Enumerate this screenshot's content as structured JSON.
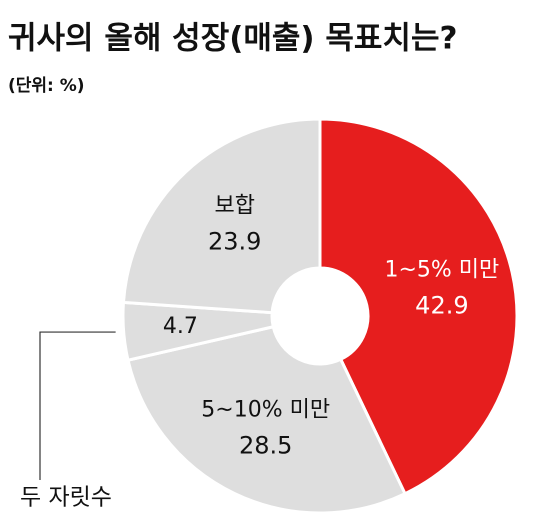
{
  "chart_data": {
    "type": "pie",
    "title": "귀사의 올해 성장(매출) 목표치는?",
    "subtitle": "(단위: %)",
    "categories": [
      "1~5% 미만",
      "5~10% 미만",
      "두 자릿수",
      "보합"
    ],
    "values": [
      42.9,
      28.5,
      4.7,
      23.9
    ],
    "colors": [
      "#e61e1e",
      "#dedede",
      "#dedede",
      "#dedede"
    ],
    "label_colors": [
      "#ffffff",
      "#111111",
      "#111111",
      "#111111"
    ]
  }
}
